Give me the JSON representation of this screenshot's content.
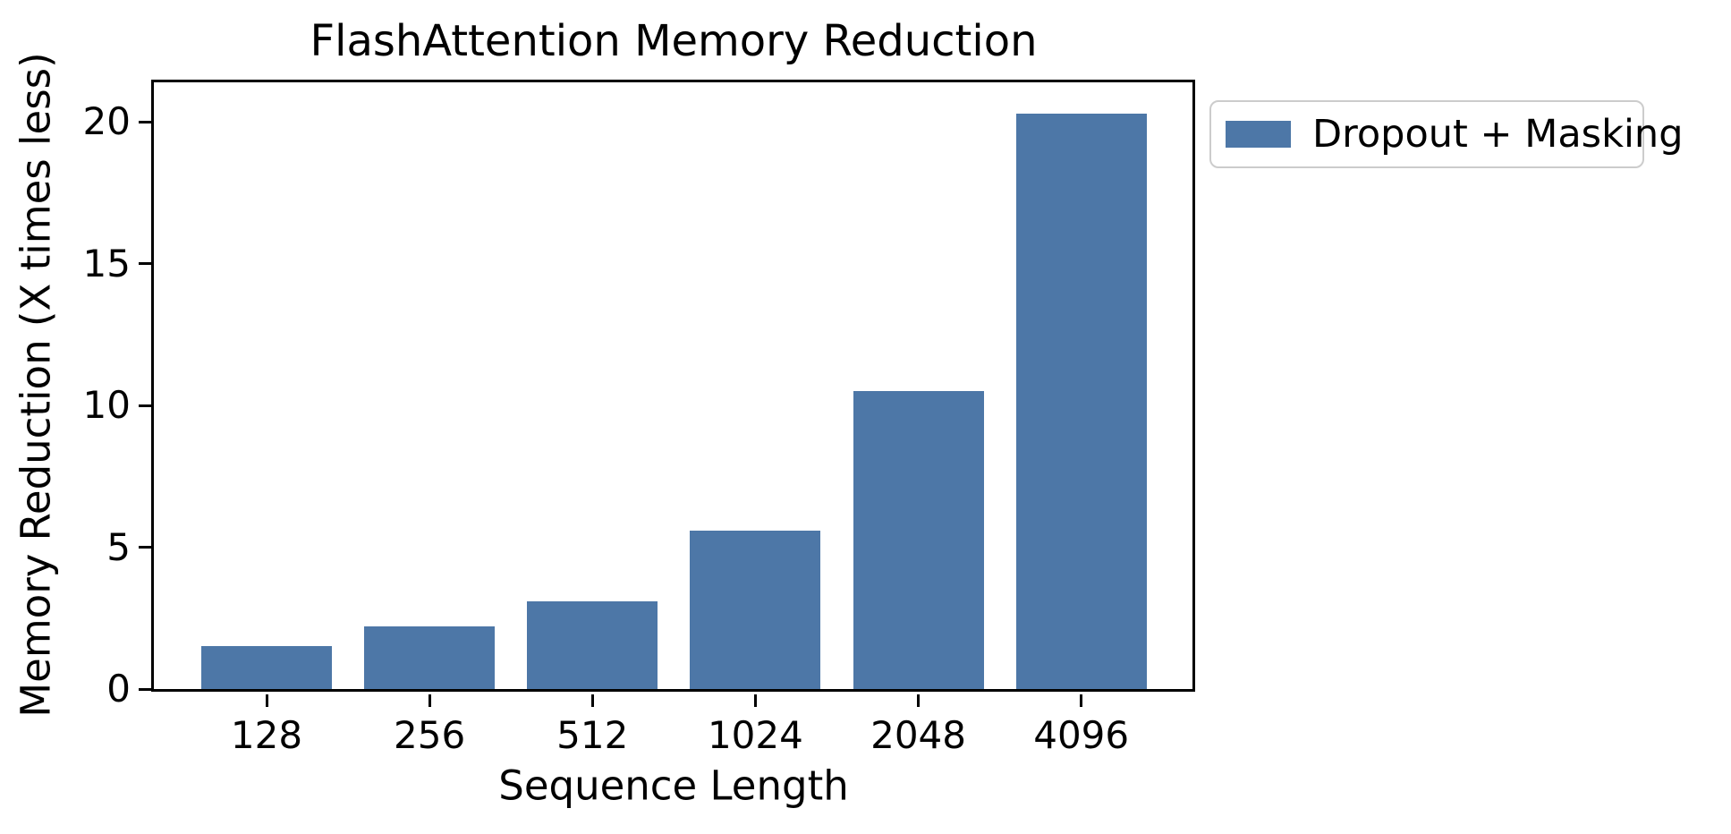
{
  "chart_data": {
    "type": "bar",
    "title": "FlashAttention Memory Reduction",
    "xlabel": "Sequence Length",
    "ylabel": "Memory Reduction (X times less)",
    "categories": [
      "128",
      "256",
      "512",
      "1024",
      "2048",
      "4096"
    ],
    "values": [
      1.5,
      2.2,
      3.1,
      5.6,
      10.5,
      20.3
    ],
    "series": [
      {
        "name": "Dropout + Masking",
        "values": [
          1.5,
          2.2,
          3.1,
          5.6,
          10.5,
          20.3
        ]
      }
    ],
    "legend": {
      "label": "Dropout + Masking",
      "position": "outside-upper-right"
    },
    "yticks": [
      0,
      5,
      10,
      15,
      20
    ],
    "ytick_labels": [
      "0",
      "5",
      "10",
      "15",
      "20"
    ],
    "ylim": [
      0,
      21.4
    ],
    "grid": false,
    "colors": {
      "bar": "#4d77a7",
      "text": "#000000",
      "spine": "#000000",
      "legend_border": "#cccccc",
      "background": "#ffffff"
    }
  }
}
